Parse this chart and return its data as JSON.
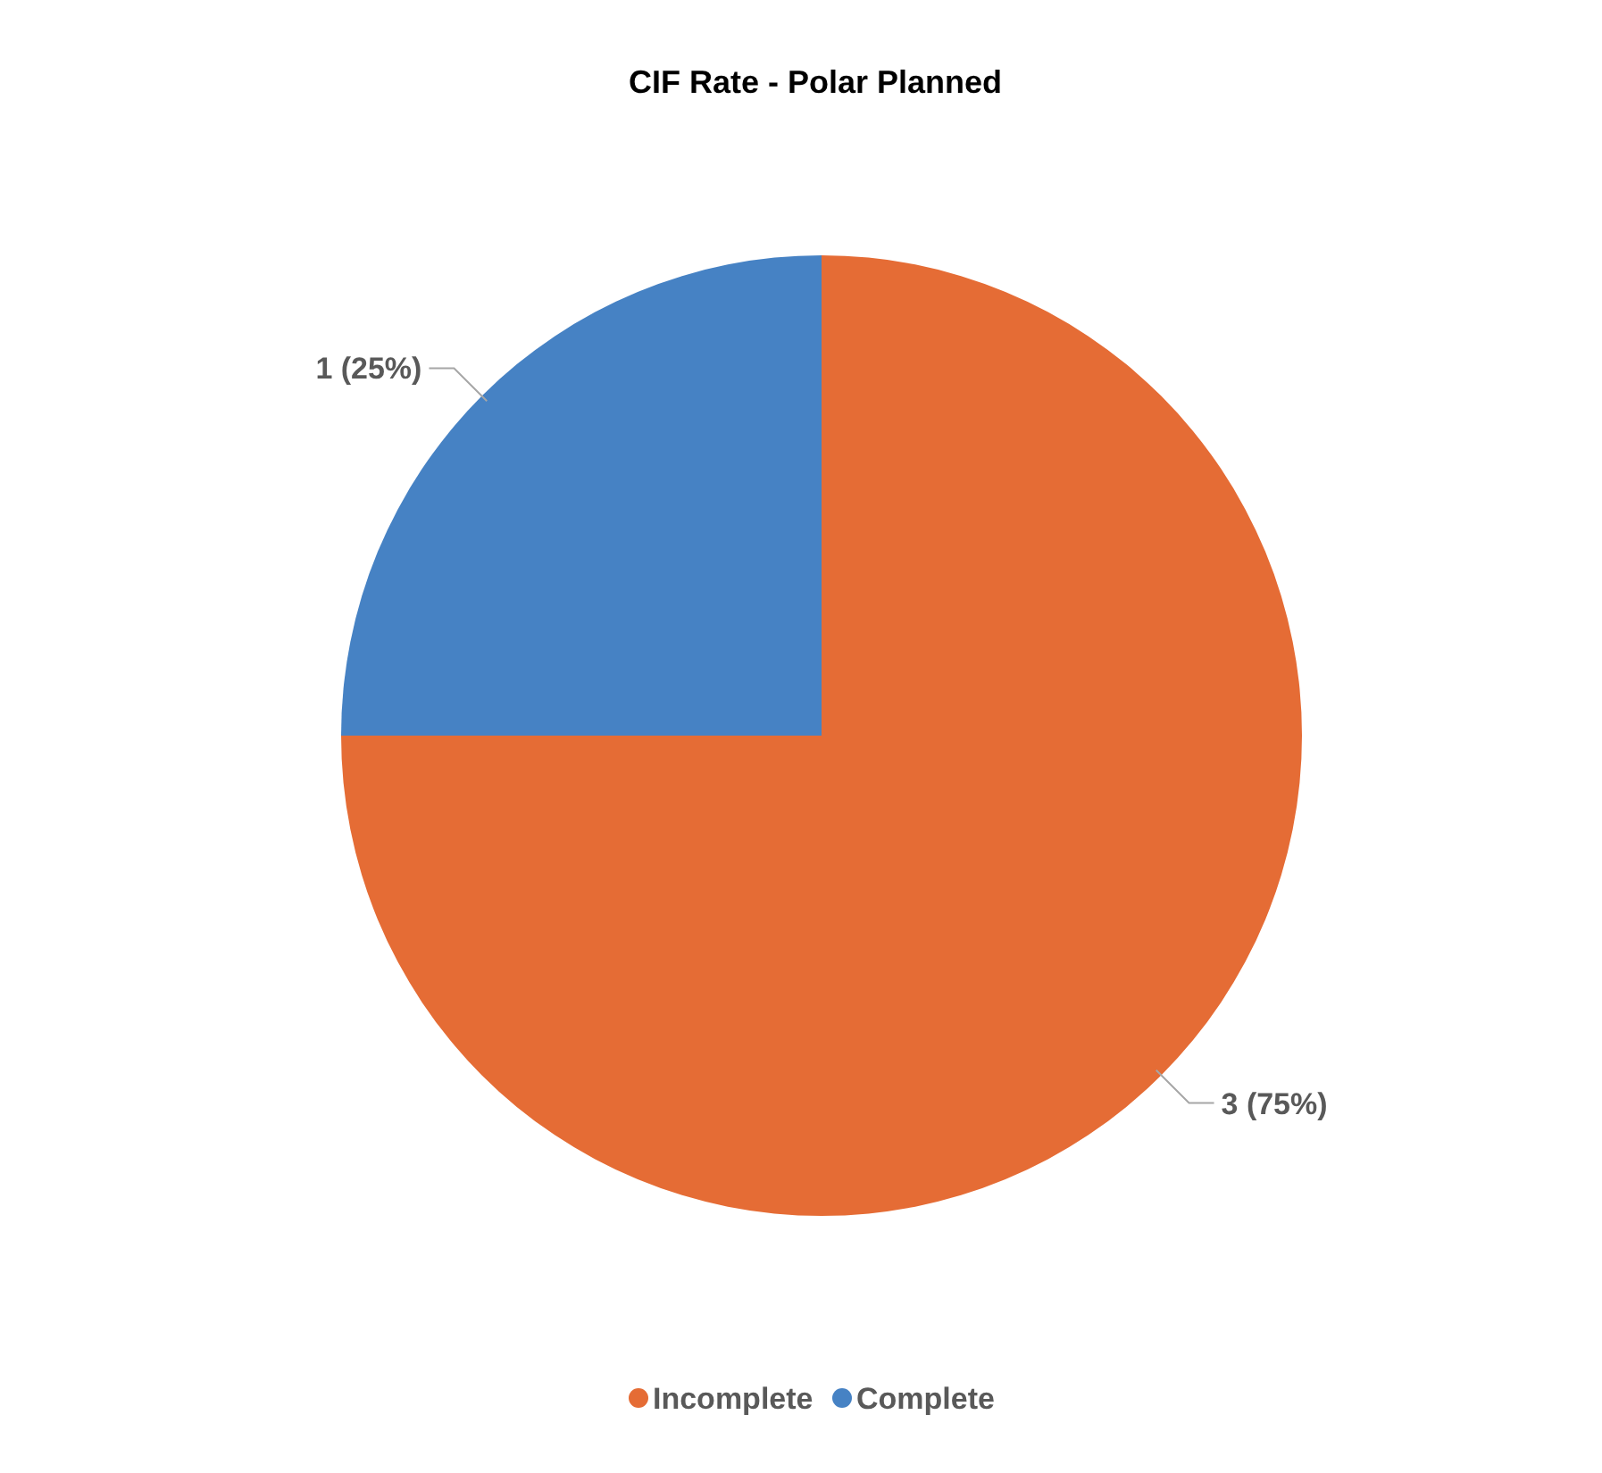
{
  "chart_data": {
    "type": "pie",
    "title": "CIF Rate - Polar Planned",
    "categories": [
      "Incomplete",
      "Complete"
    ],
    "values": [
      3,
      1
    ],
    "colors": [
      "#e56c35",
      "#4682c4"
    ],
    "value_labels": [
      "3 (75%)",
      "1 (25%)"
    ],
    "legend": "bottom"
  }
}
